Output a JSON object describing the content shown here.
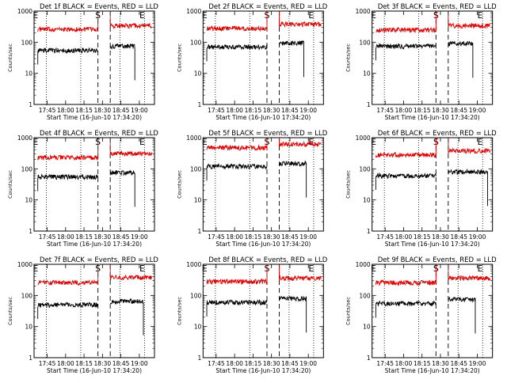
{
  "charts": [
    {
      "title": "Det 1f BLACK = Events, RED = LLD",
      "xlabel": "Start Time (16-Jun-10 17:34:20)",
      "ylabel": "Counts/sec",
      "chart_data": {
        "type": "line",
        "yscale": "log",
        "ylim": [
          1,
          1000
        ],
        "yticks": [
          "1",
          "10",
          "100",
          "1000"
        ],
        "xlim_minutes_since_1734": [
          0,
          98
        ],
        "xticks": [
          "17:45",
          "18:00",
          "18:15",
          "18:30",
          "18:45",
          "19:00"
        ],
        "markers": [
          "E",
          "S",
          "E"
        ],
        "series": [
          {
            "color": "#e00000",
            "segments": [
              {
                "t0": 3,
                "t1": 52,
                "level": 260
              },
              {
                "t0": 62,
                "t1": 96,
                "level": 340
              }
            ]
          },
          {
            "color": "#000000",
            "segments": [
              {
                "t0": 3,
                "t1": 52,
                "level": 55
              },
              {
                "t0": 62,
                "t1": 82,
                "level": 75
              }
            ]
          }
        ]
      }
    },
    {
      "title": "Det 2f BLACK = Events, RED = LLD",
      "xlabel": "Start Time (16-Jun-10 17:34:20)",
      "ylabel": "Counts/sec",
      "chart_data": {
        "type": "line",
        "yscale": "log",
        "ylim": [
          1,
          1000
        ],
        "yticks": [
          "1",
          "10",
          "100",
          "1000"
        ],
        "xlim_minutes_since_1734": [
          0,
          98
        ],
        "xticks": [
          "17:45",
          "18:00",
          "18:15",
          "18:30",
          "18:45",
          "19:00"
        ],
        "markers": [
          "E",
          "S",
          "E"
        ],
        "series": [
          {
            "color": "#e00000",
            "segments": [
              {
                "t0": 3,
                "t1": 52,
                "level": 280
              },
              {
                "t0": 62,
                "t1": 96,
                "level": 380
              }
            ]
          },
          {
            "color": "#000000",
            "segments": [
              {
                "t0": 3,
                "t1": 52,
                "level": 70
              },
              {
                "t0": 62,
                "t1": 82,
                "level": 95
              }
            ]
          }
        ]
      }
    },
    {
      "title": "Det 3f BLACK = Events, RED = LLD",
      "xlabel": "Start Time (16-Jun-10 17:34:20)",
      "ylabel": "Counts/sec",
      "chart_data": {
        "type": "line",
        "yscale": "log",
        "ylim": [
          1,
          1000
        ],
        "yticks": [
          "1",
          "10",
          "100",
          "1000"
        ],
        "xlim_minutes_since_1734": [
          0,
          98
        ],
        "xticks": [
          "17:45",
          "18:00",
          "18:15",
          "18:30",
          "18:45",
          "19:00"
        ],
        "markers": [
          "E",
          "S",
          "E"
        ],
        "series": [
          {
            "color": "#e00000",
            "segments": [
              {
                "t0": 3,
                "t1": 52,
                "level": 250
              },
              {
                "t0": 62,
                "t1": 96,
                "level": 340
              }
            ]
          },
          {
            "color": "#000000",
            "segments": [
              {
                "t0": 3,
                "t1": 52,
                "level": 75
              },
              {
                "t0": 62,
                "t1": 82,
                "level": 90
              }
            ]
          }
        ]
      }
    },
    {
      "title": "Det 4f BLACK = Events, RED = LLD",
      "xlabel": "Start Time (16-Jun-10 17:34:20)",
      "ylabel": "Counts/sec",
      "chart_data": {
        "type": "line",
        "yscale": "log",
        "ylim": [
          1,
          1000
        ],
        "yticks": [
          "1",
          "10",
          "100",
          "1000"
        ],
        "xlim_minutes_since_1734": [
          0,
          98
        ],
        "xticks": [
          "17:45",
          "18:00",
          "18:15",
          "18:30",
          "18:45",
          "19:00"
        ],
        "markers": [
          "E",
          "S",
          "E"
        ],
        "series": [
          {
            "color": "#e00000",
            "segments": [
              {
                "t0": 3,
                "t1": 52,
                "level": 230
              },
              {
                "t0": 62,
                "t1": 96,
                "level": 310
              }
            ]
          },
          {
            "color": "#000000",
            "segments": [
              {
                "t0": 3,
                "t1": 52,
                "level": 55
              },
              {
                "t0": 62,
                "t1": 82,
                "level": 75
              }
            ]
          }
        ]
      }
    },
    {
      "title": "Det 5f BLACK = Events, RED = LLD",
      "xlabel": "Start Time (16-Jun-10 17:34:20)",
      "ylabel": "Counts/sec",
      "chart_data": {
        "type": "line",
        "yscale": "log",
        "ylim": [
          1,
          1000
        ],
        "yticks": [
          "1",
          "10",
          "100",
          "1000"
        ],
        "xlim_minutes_since_1734": [
          0,
          98
        ],
        "xticks": [
          "17:45",
          "18:00",
          "18:15",
          "18:30",
          "18:45",
          "19:00"
        ],
        "markers": [
          "E",
          "S",
          "E"
        ],
        "series": [
          {
            "color": "#e00000",
            "segments": [
              {
                "t0": 3,
                "t1": 52,
                "level": 480
              },
              {
                "t0": 62,
                "t1": 96,
                "level": 620
              }
            ]
          },
          {
            "color": "#000000",
            "segments": [
              {
                "t0": 3,
                "t1": 52,
                "level": 120
              },
              {
                "t0": 62,
                "t1": 84,
                "level": 150
              }
            ]
          }
        ]
      }
    },
    {
      "title": "Det 6f BLACK = Events, RED = LLD",
      "xlabel": "Start Time (16-Jun-10 17:34:20)",
      "ylabel": "Counts/sec",
      "chart_data": {
        "type": "line",
        "yscale": "log",
        "ylim": [
          1,
          1000
        ],
        "yticks": [
          "1",
          "10",
          "100",
          "1000"
        ],
        "xlim_minutes_since_1734": [
          0,
          98
        ],
        "xticks": [
          "17:45",
          "18:00",
          "18:15",
          "18:30",
          "18:45",
          "19:00"
        ],
        "markers": [
          "E",
          "S",
          "E"
        ],
        "series": [
          {
            "color": "#e00000",
            "segments": [
              {
                "t0": 3,
                "t1": 52,
                "level": 280
              },
              {
                "t0": 62,
                "t1": 96,
                "level": 380
              }
            ]
          },
          {
            "color": "#000000",
            "segments": [
              {
                "t0": 3,
                "t1": 52,
                "level": 60
              },
              {
                "t0": 62,
                "t1": 94,
                "level": 80
              }
            ]
          }
        ]
      }
    },
    {
      "title": "Det 7f BLACK = Events, RED = LLD",
      "xlabel": "Start Time (16-Jun-10 17:34:20)",
      "ylabel": "Counts/sec",
      "chart_data": {
        "type": "line",
        "yscale": "log",
        "ylim": [
          1,
          1000
        ],
        "yticks": [
          "1",
          "10",
          "100",
          "1000"
        ],
        "xlim_minutes_since_1734": [
          0,
          98
        ],
        "xticks": [
          "17:45",
          "18:00",
          "18:15",
          "18:30",
          "18:45",
          "19:00"
        ],
        "markers": [
          "E",
          "S",
          "E"
        ],
        "series": [
          {
            "color": "#e00000",
            "segments": [
              {
                "t0": 3,
                "t1": 52,
                "level": 260
              },
              {
                "t0": 62,
                "t1": 96,
                "level": 380
              }
            ]
          },
          {
            "color": "#000000",
            "segments": [
              {
                "t0": 3,
                "t1": 52,
                "level": 50
              },
              {
                "t0": 62,
                "t1": 89,
                "level": 65
              }
            ]
          }
        ]
      }
    },
    {
      "title": "Det 8f BLACK = Events, RED = LLD",
      "xlabel": "Start Time (16-Jun-10 17:34:20)",
      "ylabel": "Counts/sec",
      "chart_data": {
        "type": "line",
        "yscale": "log",
        "ylim": [
          1,
          1000
        ],
        "yticks": [
          "1",
          "10",
          "100",
          "1000"
        ],
        "xlim_minutes_since_1734": [
          0,
          98
        ],
        "xticks": [
          "17:45",
          "18:00",
          "18:15",
          "18:30",
          "18:45",
          "19:00"
        ],
        "markers": [
          "E",
          "S",
          "E"
        ],
        "series": [
          {
            "color": "#e00000",
            "segments": [
              {
                "t0": 3,
                "t1": 52,
                "level": 280
              },
              {
                "t0": 62,
                "t1": 96,
                "level": 360
              }
            ]
          },
          {
            "color": "#000000",
            "segments": [
              {
                "t0": 3,
                "t1": 52,
                "level": 60
              },
              {
                "t0": 62,
                "t1": 84,
                "level": 80
              }
            ]
          }
        ]
      }
    },
    {
      "title": "Det 9f BLACK = Events, RED = LLD",
      "xlabel": "Start Time (16-Jun-10 17:34:20)",
      "ylabel": "Counts/sec",
      "chart_data": {
        "type": "line",
        "yscale": "log",
        "ylim": [
          1,
          1000
        ],
        "yticks": [
          "1",
          "10",
          "100",
          "1000"
        ],
        "xlim_minutes_since_1734": [
          0,
          98
        ],
        "xticks": [
          "17:45",
          "18:00",
          "18:15",
          "18:30",
          "18:45",
          "19:00"
        ],
        "markers": [
          "E",
          "S",
          "E"
        ],
        "series": [
          {
            "color": "#e00000",
            "segments": [
              {
                "t0": 3,
                "t1": 52,
                "level": 260
              },
              {
                "t0": 62,
                "t1": 96,
                "level": 360
              }
            ]
          },
          {
            "color": "#000000",
            "segments": [
              {
                "t0": 3,
                "t1": 52,
                "level": 55
              },
              {
                "t0": 62,
                "t1": 84,
                "level": 75
              }
            ]
          }
        ]
      }
    }
  ]
}
